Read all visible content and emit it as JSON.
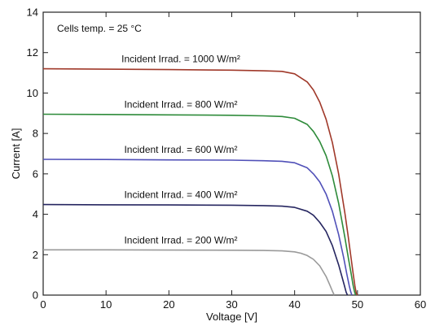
{
  "chart_data": {
    "type": "line",
    "xlabel": "Voltage [V]",
    "ylabel": "Current [A]",
    "xlim": [
      0,
      60
    ],
    "ylim": [
      0,
      14
    ],
    "xticks": [
      0,
      10,
      20,
      30,
      40,
      50,
      60
    ],
    "yticks": [
      0,
      2,
      4,
      6,
      8,
      10,
      12,
      14
    ],
    "grid": false,
    "annotations": [
      {
        "text": "Cells temp. = 25 °C"
      }
    ],
    "series": [
      {
        "name": "Incident Irrad. = 1000 W/m²",
        "color": "#a0392a",
        "x": [
          0,
          10,
          20,
          30,
          35,
          38,
          40,
          42,
          43,
          44,
          45,
          46,
          47,
          48,
          48.5,
          49,
          49.3,
          49.6,
          49.8,
          50.0
        ],
        "y": [
          11.2,
          11.18,
          11.16,
          11.13,
          11.1,
          11.07,
          10.95,
          10.55,
          10.15,
          9.55,
          8.7,
          7.55,
          6.0,
          4.05,
          2.95,
          1.8,
          1.1,
          0.45,
          0.1,
          0
        ]
      },
      {
        "name": "Incident Irrad. = 800 W/m²",
        "color": "#2e8b3a",
        "x": [
          0,
          10,
          20,
          30,
          35,
          38,
          40,
          42,
          43,
          44,
          45,
          46,
          47,
          48,
          48.6,
          49.0,
          49.3,
          49.5,
          49.7
        ],
        "y": [
          8.95,
          8.94,
          8.92,
          8.9,
          8.87,
          8.84,
          8.75,
          8.45,
          8.1,
          7.6,
          6.9,
          5.9,
          4.55,
          2.85,
          1.75,
          1.05,
          0.5,
          0.2,
          0
        ]
      },
      {
        "name": "Incident Irrad. = 600 W/m²",
        "color": "#5050b8",
        "x": [
          0,
          10,
          20,
          30,
          35,
          38,
          40,
          42,
          43,
          44,
          45,
          46,
          47,
          47.8,
          48.3,
          48.7,
          48.9,
          49.1
        ],
        "y": [
          6.72,
          6.71,
          6.69,
          6.68,
          6.65,
          6.62,
          6.55,
          6.3,
          6.0,
          5.6,
          5.0,
          4.15,
          3.0,
          1.85,
          1.05,
          0.45,
          0.2,
          0
        ]
      },
      {
        "name": "Incident Irrad. = 400 W/m²",
        "color": "#262660",
        "x": [
          0,
          10,
          20,
          30,
          35,
          38,
          40,
          42,
          43,
          44,
          45,
          46,
          47,
          47.5,
          47.9,
          48.2,
          48.4
        ],
        "y": [
          4.48,
          4.47,
          4.46,
          4.45,
          4.43,
          4.4,
          4.34,
          4.15,
          3.95,
          3.6,
          3.15,
          2.45,
          1.5,
          0.95,
          0.5,
          0.15,
          0
        ]
      },
      {
        "name": "Incident Irrad. = 200 W/m²",
        "color": "#9a9a9a",
        "x": [
          0,
          10,
          20,
          30,
          35,
          38,
          40,
          41,
          42,
          43,
          44,
          45,
          45.6,
          46.0,
          46.3
        ],
        "y": [
          2.24,
          2.24,
          2.23,
          2.22,
          2.21,
          2.19,
          2.14,
          2.07,
          1.96,
          1.77,
          1.45,
          0.92,
          0.5,
          0.2,
          0
        ]
      }
    ]
  }
}
